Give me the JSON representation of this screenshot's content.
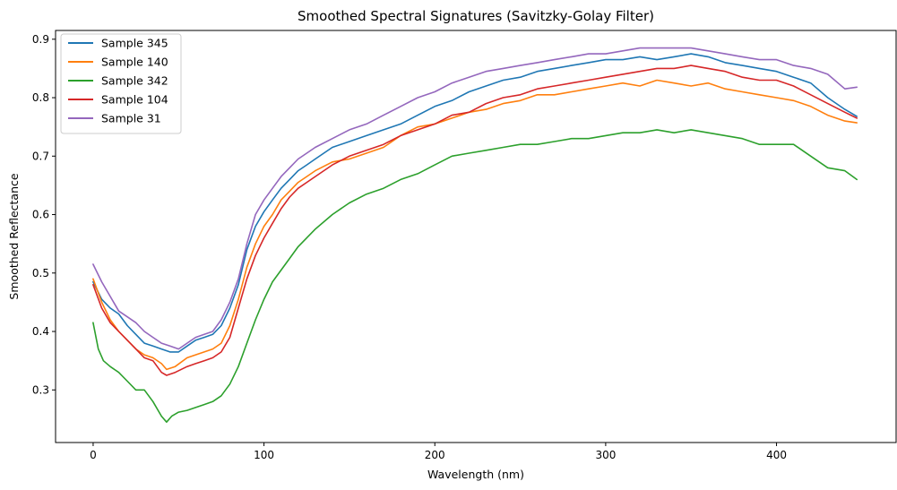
{
  "chart_data": {
    "type": "line",
    "title": "Smoothed Spectral Signatures (Savitzky-Golay Filter)",
    "xlabel": "Wavelength (nm)",
    "ylabel": "Smoothed Reflectance",
    "xlim": [
      -22,
      470
    ],
    "ylim": [
      0.21,
      0.915
    ],
    "xticks": [
      0,
      100,
      200,
      300,
      400
    ],
    "yticks": [
      0.3,
      0.4,
      0.5,
      0.6,
      0.7,
      0.8,
      0.9
    ],
    "grid": false,
    "legend_position": "top-left",
    "series": [
      {
        "name": "Sample 345",
        "color": "#1f77b4",
        "points": [
          [
            0,
            0.485
          ],
          [
            5,
            0.455
          ],
          [
            10,
            0.44
          ],
          [
            15,
            0.43
          ],
          [
            20,
            0.41
          ],
          [
            25,
            0.395
          ],
          [
            30,
            0.38
          ],
          [
            35,
            0.375
          ],
          [
            40,
            0.37
          ],
          [
            45,
            0.365
          ],
          [
            50,
            0.365
          ],
          [
            55,
            0.375
          ],
          [
            60,
            0.385
          ],
          [
            65,
            0.39
          ],
          [
            70,
            0.395
          ],
          [
            75,
            0.41
          ],
          [
            80,
            0.44
          ],
          [
            85,
            0.48
          ],
          [
            90,
            0.54
          ],
          [
            95,
            0.58
          ],
          [
            100,
            0.605
          ],
          [
            105,
            0.625
          ],
          [
            110,
            0.645
          ],
          [
            115,
            0.66
          ],
          [
            120,
            0.675
          ],
          [
            125,
            0.685
          ],
          [
            130,
            0.695
          ],
          [
            140,
            0.715
          ],
          [
            150,
            0.725
          ],
          [
            160,
            0.735
          ],
          [
            170,
            0.745
          ],
          [
            180,
            0.755
          ],
          [
            190,
            0.77
          ],
          [
            200,
            0.785
          ],
          [
            210,
            0.795
          ],
          [
            220,
            0.81
          ],
          [
            230,
            0.82
          ],
          [
            240,
            0.83
          ],
          [
            250,
            0.835
          ],
          [
            260,
            0.845
          ],
          [
            270,
            0.85
          ],
          [
            280,
            0.855
          ],
          [
            290,
            0.86
          ],
          [
            300,
            0.865
          ],
          [
            310,
            0.865
          ],
          [
            320,
            0.87
          ],
          [
            330,
            0.865
          ],
          [
            340,
            0.87
          ],
          [
            350,
            0.875
          ],
          [
            360,
            0.87
          ],
          [
            370,
            0.86
          ],
          [
            380,
            0.855
          ],
          [
            390,
            0.85
          ],
          [
            400,
            0.845
          ],
          [
            410,
            0.835
          ],
          [
            420,
            0.825
          ],
          [
            430,
            0.8
          ],
          [
            440,
            0.78
          ],
          [
            447,
            0.768
          ]
        ]
      },
      {
        "name": "Sample 140",
        "color": "#ff7f0e",
        "points": [
          [
            0,
            0.49
          ],
          [
            5,
            0.45
          ],
          [
            10,
            0.42
          ],
          [
            15,
            0.4
          ],
          [
            20,
            0.385
          ],
          [
            25,
            0.37
          ],
          [
            30,
            0.36
          ],
          [
            35,
            0.355
          ],
          [
            40,
            0.345
          ],
          [
            43,
            0.335
          ],
          [
            48,
            0.34
          ],
          [
            55,
            0.355
          ],
          [
            60,
            0.36
          ],
          [
            65,
            0.365
          ],
          [
            70,
            0.37
          ],
          [
            75,
            0.38
          ],
          [
            80,
            0.41
          ],
          [
            85,
            0.455
          ],
          [
            90,
            0.51
          ],
          [
            95,
            0.55
          ],
          [
            100,
            0.58
          ],
          [
            105,
            0.6
          ],
          [
            110,
            0.625
          ],
          [
            115,
            0.64
          ],
          [
            120,
            0.655
          ],
          [
            125,
            0.665
          ],
          [
            130,
            0.675
          ],
          [
            140,
            0.69
          ],
          [
            150,
            0.695
          ],
          [
            160,
            0.705
          ],
          [
            170,
            0.715
          ],
          [
            180,
            0.735
          ],
          [
            190,
            0.75
          ],
          [
            200,
            0.755
          ],
          [
            210,
            0.765
          ],
          [
            220,
            0.775
          ],
          [
            230,
            0.78
          ],
          [
            240,
            0.79
          ],
          [
            250,
            0.795
          ],
          [
            260,
            0.805
          ],
          [
            270,
            0.805
          ],
          [
            280,
            0.81
          ],
          [
            290,
            0.815
          ],
          [
            300,
            0.82
          ],
          [
            310,
            0.825
          ],
          [
            320,
            0.82
          ],
          [
            330,
            0.83
          ],
          [
            340,
            0.825
          ],
          [
            350,
            0.82
          ],
          [
            360,
            0.825
          ],
          [
            370,
            0.815
          ],
          [
            380,
            0.81
          ],
          [
            390,
            0.805
          ],
          [
            400,
            0.8
          ],
          [
            410,
            0.795
          ],
          [
            420,
            0.785
          ],
          [
            430,
            0.77
          ],
          [
            440,
            0.76
          ],
          [
            447,
            0.757
          ]
        ]
      },
      {
        "name": "Sample 342",
        "color": "#2ca02c",
        "points": [
          [
            0,
            0.415
          ],
          [
            3,
            0.37
          ],
          [
            6,
            0.35
          ],
          [
            10,
            0.34
          ],
          [
            15,
            0.33
          ],
          [
            20,
            0.315
          ],
          [
            25,
            0.3
          ],
          [
            30,
            0.3
          ],
          [
            35,
            0.28
          ],
          [
            40,
            0.255
          ],
          [
            43,
            0.245
          ],
          [
            46,
            0.255
          ],
          [
            50,
            0.262
          ],
          [
            55,
            0.265
          ],
          [
            60,
            0.27
          ],
          [
            65,
            0.275
          ],
          [
            70,
            0.28
          ],
          [
            75,
            0.29
          ],
          [
            80,
            0.31
          ],
          [
            85,
            0.34
          ],
          [
            90,
            0.38
          ],
          [
            95,
            0.42
          ],
          [
            100,
            0.455
          ],
          [
            105,
            0.485
          ],
          [
            110,
            0.505
          ],
          [
            115,
            0.525
          ],
          [
            120,
            0.545
          ],
          [
            125,
            0.56
          ],
          [
            130,
            0.575
          ],
          [
            140,
            0.6
          ],
          [
            150,
            0.62
          ],
          [
            160,
            0.635
          ],
          [
            170,
            0.645
          ],
          [
            180,
            0.66
          ],
          [
            190,
            0.67
          ],
          [
            200,
            0.685
          ],
          [
            210,
            0.7
          ],
          [
            220,
            0.705
          ],
          [
            230,
            0.71
          ],
          [
            240,
            0.715
          ],
          [
            250,
            0.72
          ],
          [
            260,
            0.72
          ],
          [
            270,
            0.725
          ],
          [
            280,
            0.73
          ],
          [
            290,
            0.73
          ],
          [
            300,
            0.735
          ],
          [
            310,
            0.74
          ],
          [
            320,
            0.74
          ],
          [
            330,
            0.745
          ],
          [
            340,
            0.74
          ],
          [
            350,
            0.745
          ],
          [
            360,
            0.74
          ],
          [
            370,
            0.735
          ],
          [
            380,
            0.73
          ],
          [
            390,
            0.72
          ],
          [
            400,
            0.72
          ],
          [
            410,
            0.72
          ],
          [
            420,
            0.7
          ],
          [
            430,
            0.68
          ],
          [
            440,
            0.675
          ],
          [
            447,
            0.66
          ]
        ]
      },
      {
        "name": "Sample 104",
        "color": "#d62728",
        "points": [
          [
            0,
            0.48
          ],
          [
            5,
            0.44
          ],
          [
            10,
            0.415
          ],
          [
            15,
            0.4
          ],
          [
            20,
            0.385
          ],
          [
            25,
            0.37
          ],
          [
            30,
            0.355
          ],
          [
            35,
            0.35
          ],
          [
            40,
            0.33
          ],
          [
            43,
            0.325
          ],
          [
            48,
            0.33
          ],
          [
            55,
            0.34
          ],
          [
            60,
            0.345
          ],
          [
            65,
            0.35
          ],
          [
            70,
            0.355
          ],
          [
            75,
            0.365
          ],
          [
            80,
            0.39
          ],
          [
            85,
            0.44
          ],
          [
            90,
            0.49
          ],
          [
            95,
            0.53
          ],
          [
            100,
            0.56
          ],
          [
            105,
            0.585
          ],
          [
            110,
            0.61
          ],
          [
            115,
            0.63
          ],
          [
            120,
            0.645
          ],
          [
            125,
            0.655
          ],
          [
            130,
            0.665
          ],
          [
            140,
            0.685
          ],
          [
            150,
            0.7
          ],
          [
            160,
            0.71
          ],
          [
            170,
            0.72
          ],
          [
            180,
            0.735
          ],
          [
            190,
            0.745
          ],
          [
            200,
            0.755
          ],
          [
            210,
            0.77
          ],
          [
            220,
            0.775
          ],
          [
            230,
            0.79
          ],
          [
            240,
            0.8
          ],
          [
            250,
            0.805
          ],
          [
            260,
            0.815
          ],
          [
            270,
            0.82
          ],
          [
            280,
            0.825
          ],
          [
            290,
            0.83
          ],
          [
            300,
            0.835
          ],
          [
            310,
            0.84
          ],
          [
            320,
            0.845
          ],
          [
            330,
            0.85
          ],
          [
            340,
            0.85
          ],
          [
            350,
            0.855
          ],
          [
            360,
            0.85
          ],
          [
            370,
            0.845
          ],
          [
            380,
            0.835
          ],
          [
            390,
            0.83
          ],
          [
            400,
            0.83
          ],
          [
            410,
            0.82
          ],
          [
            420,
            0.805
          ],
          [
            430,
            0.79
          ],
          [
            440,
            0.775
          ],
          [
            447,
            0.765
          ]
        ]
      },
      {
        "name": "Sample 31",
        "color": "#9467bd",
        "points": [
          [
            0,
            0.515
          ],
          [
            5,
            0.485
          ],
          [
            10,
            0.46
          ],
          [
            15,
            0.435
          ],
          [
            20,
            0.425
          ],
          [
            25,
            0.415
          ],
          [
            30,
            0.4
          ],
          [
            35,
            0.39
          ],
          [
            40,
            0.38
          ],
          [
            45,
            0.375
          ],
          [
            50,
            0.37
          ],
          [
            55,
            0.38
          ],
          [
            60,
            0.39
          ],
          [
            65,
            0.395
          ],
          [
            70,
            0.4
          ],
          [
            75,
            0.42
          ],
          [
            80,
            0.45
          ],
          [
            85,
            0.49
          ],
          [
            90,
            0.55
          ],
          [
            95,
            0.6
          ],
          [
            100,
            0.625
          ],
          [
            105,
            0.645
          ],
          [
            110,
            0.665
          ],
          [
            115,
            0.68
          ],
          [
            120,
            0.695
          ],
          [
            125,
            0.705
          ],
          [
            130,
            0.715
          ],
          [
            140,
            0.73
          ],
          [
            150,
            0.745
          ],
          [
            160,
            0.755
          ],
          [
            170,
            0.77
          ],
          [
            180,
            0.785
          ],
          [
            190,
            0.8
          ],
          [
            200,
            0.81
          ],
          [
            210,
            0.825
          ],
          [
            220,
            0.835
          ],
          [
            230,
            0.845
          ],
          [
            240,
            0.85
          ],
          [
            250,
            0.855
          ],
          [
            260,
            0.86
          ],
          [
            270,
            0.865
          ],
          [
            280,
            0.87
          ],
          [
            290,
            0.875
          ],
          [
            300,
            0.875
          ],
          [
            310,
            0.88
          ],
          [
            320,
            0.885
          ],
          [
            330,
            0.885
          ],
          [
            340,
            0.885
          ],
          [
            350,
            0.885
          ],
          [
            360,
            0.88
          ],
          [
            370,
            0.875
          ],
          [
            380,
            0.87
          ],
          [
            390,
            0.865
          ],
          [
            400,
            0.865
          ],
          [
            410,
            0.855
          ],
          [
            420,
            0.85
          ],
          [
            430,
            0.84
          ],
          [
            440,
            0.815
          ],
          [
            447,
            0.818
          ]
        ]
      }
    ]
  }
}
